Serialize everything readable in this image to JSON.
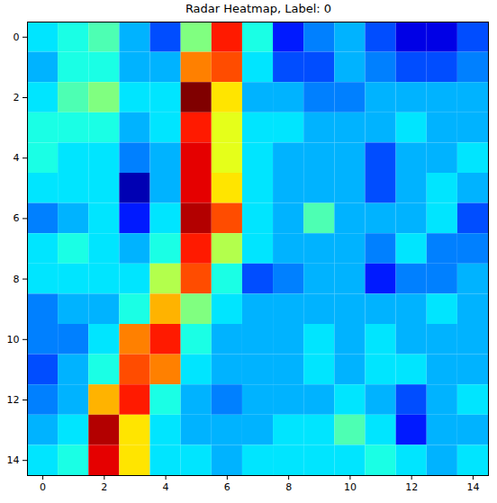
{
  "chart_data": {
    "type": "heatmap",
    "title": "Radar Heatmap, Label: 0",
    "x": [
      0,
      1,
      2,
      3,
      4,
      5,
      6,
      7,
      8,
      9,
      10,
      11,
      12,
      13,
      14
    ],
    "y": [
      0,
      1,
      2,
      3,
      4,
      5,
      6,
      7,
      8,
      9,
      10,
      11,
      12,
      13,
      14
    ],
    "xlim": [
      -0.5,
      14.5
    ],
    "ylim": [
      14.5,
      -0.5
    ],
    "xticks": [
      0,
      2,
      4,
      6,
      8,
      10,
      12,
      14
    ],
    "yticks": [
      0,
      2,
      4,
      6,
      8,
      10,
      12,
      14
    ],
    "color": "jet",
    "color_range": [
      0,
      1
    ],
    "cells": [
      [
        0.35,
        0.4,
        0.45,
        0.3,
        0.2,
        0.5,
        0.85,
        0.4,
        0.15,
        0.25,
        0.3,
        0.2,
        0.1,
        0.1,
        0.2
      ],
      [
        0.3,
        0.4,
        0.4,
        0.3,
        0.3,
        0.75,
        0.8,
        0.35,
        0.2,
        0.2,
        0.3,
        0.25,
        0.2,
        0.2,
        0.25
      ],
      [
        0.35,
        0.45,
        0.5,
        0.35,
        0.35,
        1.0,
        0.65,
        0.3,
        0.3,
        0.25,
        0.25,
        0.3,
        0.3,
        0.3,
        0.3
      ],
      [
        0.4,
        0.4,
        0.4,
        0.3,
        0.35,
        0.85,
        0.6,
        0.35,
        0.35,
        0.3,
        0.3,
        0.3,
        0.35,
        0.3,
        0.3
      ],
      [
        0.4,
        0.35,
        0.35,
        0.25,
        0.3,
        0.9,
        0.6,
        0.35,
        0.3,
        0.3,
        0.3,
        0.2,
        0.3,
        0.3,
        0.35
      ],
      [
        0.35,
        0.35,
        0.35,
        0.05,
        0.3,
        0.9,
        0.65,
        0.35,
        0.3,
        0.3,
        0.3,
        0.2,
        0.3,
        0.35,
        0.3
      ],
      [
        0.25,
        0.3,
        0.35,
        0.15,
        0.35,
        0.95,
        0.8,
        0.35,
        0.3,
        0.45,
        0.3,
        0.3,
        0.3,
        0.35,
        0.2
      ],
      [
        0.35,
        0.4,
        0.35,
        0.3,
        0.4,
        0.85,
        0.55,
        0.35,
        0.3,
        0.3,
        0.3,
        0.25,
        0.35,
        0.25,
        0.25
      ],
      [
        0.35,
        0.35,
        0.35,
        0.35,
        0.55,
        0.8,
        0.4,
        0.2,
        0.25,
        0.3,
        0.3,
        0.15,
        0.25,
        0.25,
        0.3
      ],
      [
        0.25,
        0.3,
        0.3,
        0.4,
        0.7,
        0.5,
        0.35,
        0.3,
        0.3,
        0.3,
        0.3,
        0.3,
        0.3,
        0.35,
        0.3
      ],
      [
        0.25,
        0.25,
        0.35,
        0.75,
        0.85,
        0.4,
        0.3,
        0.3,
        0.3,
        0.35,
        0.3,
        0.35,
        0.3,
        0.3,
        0.3
      ],
      [
        0.2,
        0.3,
        0.4,
        0.8,
        0.75,
        0.35,
        0.3,
        0.3,
        0.3,
        0.35,
        0.3,
        0.35,
        0.35,
        0.3,
        0.3
      ],
      [
        0.25,
        0.3,
        0.7,
        0.85,
        0.4,
        0.3,
        0.25,
        0.3,
        0.3,
        0.3,
        0.35,
        0.3,
        0.2,
        0.3,
        0.35
      ],
      [
        0.3,
        0.35,
        0.95,
        0.65,
        0.35,
        0.3,
        0.3,
        0.3,
        0.35,
        0.35,
        0.45,
        0.35,
        0.15,
        0.3,
        0.3
      ],
      [
        0.35,
        0.4,
        0.9,
        0.65,
        0.35,
        0.35,
        0.3,
        0.35,
        0.35,
        0.35,
        0.35,
        0.4,
        0.35,
        0.3,
        0.35
      ]
    ]
  }
}
